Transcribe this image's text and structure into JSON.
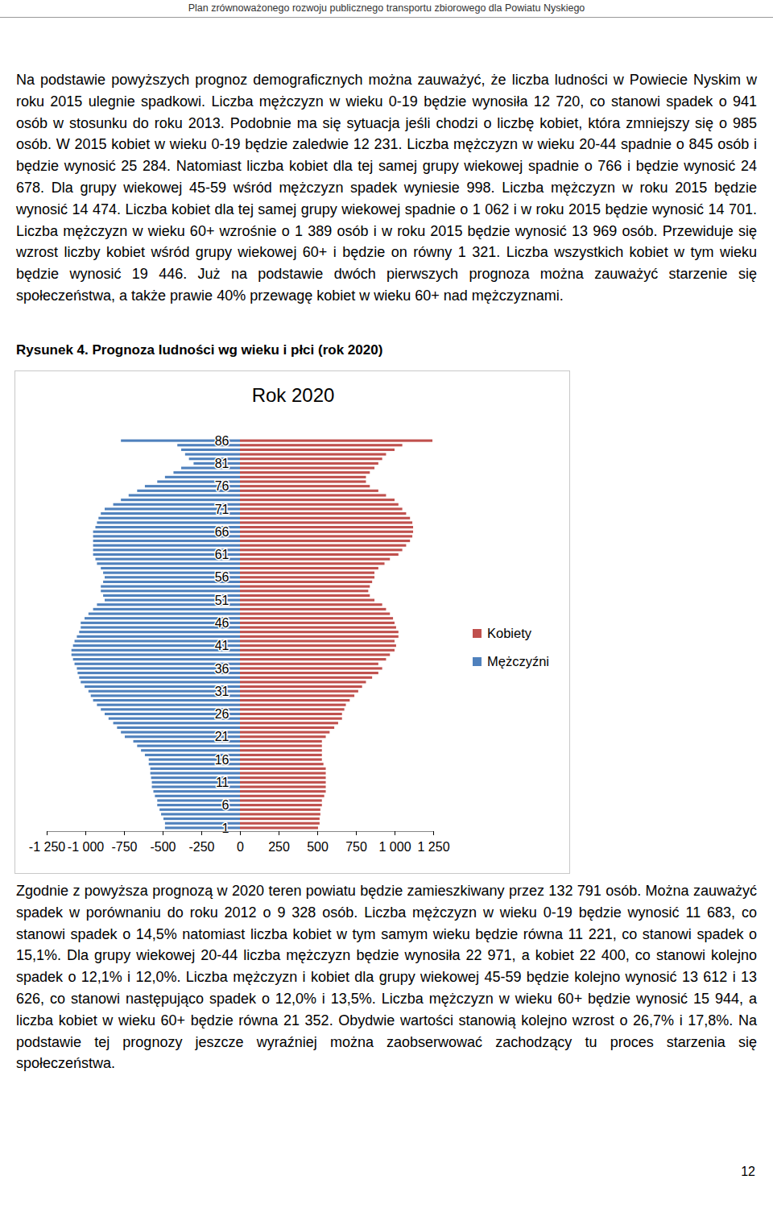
{
  "header": "Plan zrównoważonego rozwoju publicznego transportu zbiorowego dla Powiatu Nyskiego",
  "paragraphs_before": [
    "Na podstawie powyższych prognoz demograficznych można zauważyć, że liczba ludności w Powiecie Nyskim w roku 2015 ulegnie spadkowi. Liczba mężczyzn w wieku 0-19 będzie wynosiła 12 720, co stanowi spadek o 941 osób w stosunku do roku 2013. Podobnie ma się sytuacja jeśli chodzi o liczbę kobiet, która zmniejszy się o 985 osób. W 2015 kobiet w wieku 0-19 będzie zaledwie 12 231. Liczba mężczyzn w wieku 20-44  spadnie o 845 osób i będzie wynosić 25 284. Natomiast liczba kobiet dla tej samej grupy wiekowej spadnie o 766 i będzie wynosić 24 678. Dla grupy wiekowej 45-59 wśród mężczyzn spadek wyniesie 998. Liczba mężczyzn w roku 2015 będzie wynosić 14 474. Liczba kobiet dla tej samej grupy wiekowej spadnie o 1 062 i w roku 2015 będzie wynosić 14 701. Liczba mężczyzn w wieku 60+ wzrośnie o 1 389 osób i w roku 2015 będzie wynosić 13 969 osób. Przewiduje się wzrost liczby kobiet wśród grupy wiekowej 60+ i będzie on równy 1 321. Liczba wszystkich kobiet w tym wieku będzie wynosić 19 446. Już na podstawie dwóch pierwszych prognoza można zauważyć starzenie się społeczeństwa, a także prawie 40% przewagę kobiet w wieku 60+ nad mężczyznami."
  ],
  "figure_caption": "Rysunek 4. Prognoza ludności wg wieku i płci (rok 2020)",
  "chart_data": {
    "type": "bar",
    "orientation": "horizontal",
    "title": "Rok 2020",
    "legend": "right",
    "categories": [
      "1",
      null,
      null,
      null,
      null,
      "6",
      null,
      null,
      null,
      null,
      "11",
      null,
      null,
      null,
      null,
      "16",
      null,
      null,
      null,
      null,
      "21",
      null,
      null,
      null,
      null,
      "26",
      null,
      null,
      null,
      null,
      "31",
      null,
      null,
      null,
      null,
      "36",
      null,
      null,
      null,
      null,
      "41",
      null,
      null,
      null,
      null,
      "46",
      null,
      null,
      null,
      null,
      "51",
      null,
      null,
      null,
      null,
      "56",
      null,
      null,
      null,
      null,
      "61",
      null,
      null,
      null,
      null,
      "66",
      null,
      null,
      null,
      null,
      "71",
      null,
      null,
      null,
      null,
      "76",
      null,
      null,
      null,
      null,
      "81",
      null,
      null,
      null,
      null,
      "86"
    ],
    "series": [
      {
        "name": "Kobiety",
        "color": "#c0504d",
        "values": [
          505,
          515,
          515,
          520,
          520,
          530,
          530,
          545,
          555,
          555,
          555,
          555,
          555,
          555,
          540,
          530,
          530,
          530,
          530,
          530,
          555,
          580,
          610,
          635,
          660,
          660,
          675,
          685,
          710,
          740,
          765,
          790,
          815,
          855,
          895,
          920,
          895,
          945,
          970,
          1000,
          1010,
          1000,
          1025,
          1025,
          1010,
          1000,
          990,
          970,
          945,
          920,
          870,
          840,
          830,
          840,
          855,
          870,
          870,
          895,
          935,
          970,
          1025,
          1050,
          1075,
          1100,
          1115,
          1120,
          1120,
          1115,
          1100,
          1075,
          1050,
          1025,
          1000,
          945,
          895,
          840,
          815,
          815,
          840,
          870,
          895,
          920,
          945,
          1000,
          1050,
          1245
        ]
      },
      {
        "name": "Mężczyźni",
        "color": "#4f81bd",
        "values": [
          -485,
          -485,
          -495,
          -510,
          -520,
          -535,
          -535,
          -550,
          -560,
          -570,
          -570,
          -575,
          -580,
          -580,
          -590,
          -590,
          -615,
          -640,
          -665,
          -690,
          -745,
          -770,
          -795,
          -820,
          -850,
          -875,
          -900,
          -925,
          -950,
          -965,
          -980,
          -1005,
          -1030,
          -1040,
          -1050,
          -1055,
          -1070,
          -1080,
          -1090,
          -1090,
          -1080,
          -1070,
          -1055,
          -1040,
          -1030,
          -1030,
          -1005,
          -980,
          -950,
          -925,
          -875,
          -885,
          -900,
          -900,
          -885,
          -875,
          -885,
          -900,
          -925,
          -935,
          -950,
          -950,
          -950,
          -950,
          -950,
          -950,
          -935,
          -925,
          -915,
          -900,
          -875,
          -820,
          -770,
          -720,
          -665,
          -615,
          -535,
          -485,
          -430,
          -380,
          -300,
          -330,
          -355,
          -380,
          -405,
          -770
        ]
      }
    ],
    "xlim": [
      -1250,
      1250
    ],
    "xticks": [
      {
        "value": -1250,
        "label": "-1 250"
      },
      {
        "value": -1000,
        "label": "-1 000"
      },
      -750,
      -500,
      -250,
      0,
      250,
      500,
      750,
      {
        "value": 1000,
        "label": "1 000"
      },
      {
        "value": 1250,
        "label": "1 250"
      }
    ]
  },
  "paragraphs_after": [
    "Zgodnie z powyższa prognozą w 2020 teren powiatu będzie zamieszkiwany przez 132 791 osób. Można zauważyć spadek w porównaniu do roku 2012 o 9 328 osób. Liczba mężczyzn w wieku 0-19 będzie wynosić 11 683, co stanowi spadek o 14,5%  natomiast liczba kobiet w tym samym wieku będzie równa 11 221, co stanowi spadek o 15,1%. Dla grupy wiekowej 20-44 liczba mężczyzn będzie wynosiła 22 971, a kobiet 22 400, co stanowi kolejno spadek o 12,1% i 12,0%. Liczba mężczyzn i kobiet dla grupy wiekowej 45-59 będzie kolejno wynosić 13 612 i 13 626, co stanowi następująco spadek o 12,0% i 13,5%.  Liczba mężczyzn w wieku 60+ będzie wynosić 15 944, a liczba kobiet w wieku 60+ będzie równa 21 352.  Obydwie wartości stanowią kolejno wzrost o 26,7% i 17,8%. Na podstawie tej prognozy jeszcze wyraźniej można zaobserwować zachodzący tu proces starzenia się społeczeństwa."
  ],
  "page_number": "12"
}
